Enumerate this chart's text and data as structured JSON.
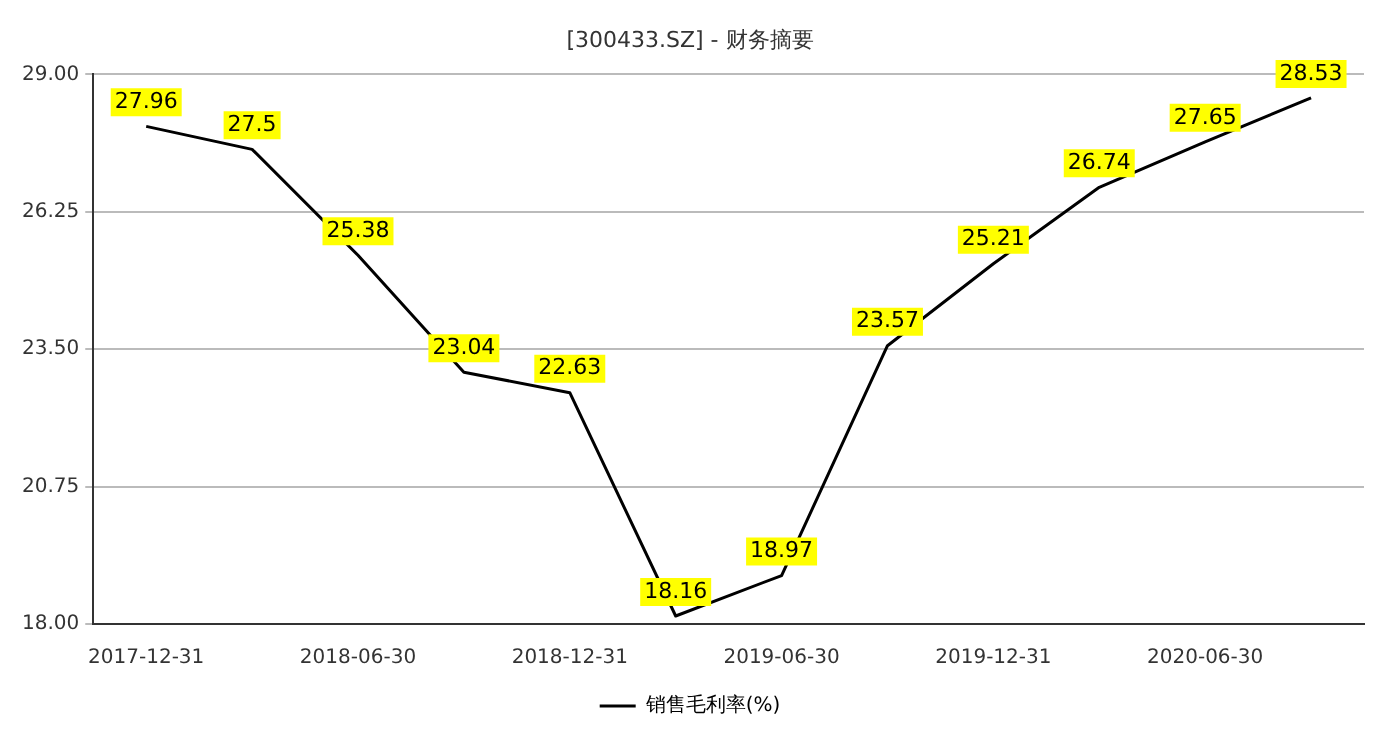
{
  "chart_data": {
    "type": "line",
    "title": "[300433.SZ] - 财务摘要",
    "categories": [
      "2017-12-31",
      null,
      "2018-06-30",
      null,
      "2018-12-31",
      null,
      "2019-06-30",
      null,
      "2019-12-31",
      null,
      "2020-06-30",
      null
    ],
    "series": [
      {
        "name": "销售毛利率(%)",
        "color": "#000000",
        "values": [
          27.96,
          27.5,
          25.38,
          23.04,
          22.63,
          18.16,
          18.97,
          23.57,
          25.21,
          26.74,
          27.65,
          28.53
        ]
      }
    ],
    "ylim": [
      18,
      29
    ],
    "yticks": [
      {
        "value": 18,
        "label": "18.00"
      },
      {
        "value": 20.75,
        "label": "20.75"
      },
      {
        "value": 23.5,
        "label": "23.50"
      },
      {
        "value": 26.25,
        "label": "26.25"
      },
      {
        "value": 29,
        "label": "29.00"
      }
    ],
    "grid": "y",
    "legend": "bottom",
    "marker": "none",
    "line_style": "solid",
    "data_labels": true
  }
}
